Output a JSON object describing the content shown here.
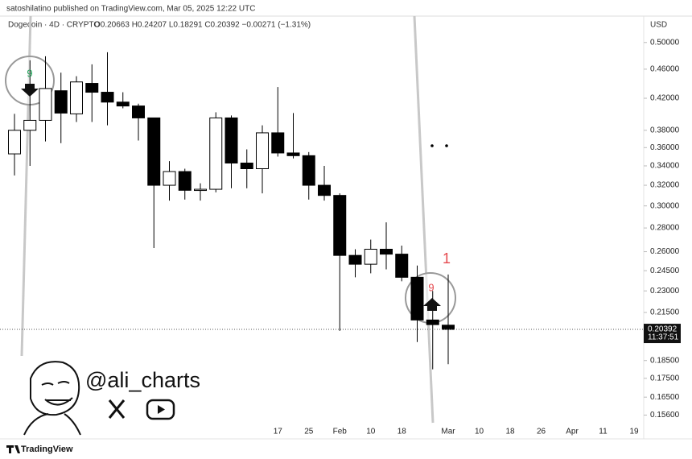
{
  "header": {
    "publisher": "satoshilatino published on TradingView.com, Mar 05, 2025 12:22 UTC"
  },
  "chart_data": {
    "type": "candlestick",
    "symbol": "Dogecoin · 4D · CRYPTO",
    "legend_text": "O0.20663 H0.24207 L0.18291 C0.20392 −0.00271 (−1.31%)",
    "currency": "USD",
    "countdown": "11:37:51",
    "categories": [
      null,
      null,
      null,
      null,
      null,
      null,
      null,
      null,
      null,
      null,
      null,
      null,
      null,
      null,
      null,
      null,
      null,
      "17",
      null,
      "25",
      null,
      "Feb",
      null,
      "10",
      null,
      "18",
      null,
      null,
      "Mar",
      null,
      "10",
      null,
      "18",
      null,
      "26",
      null,
      "Apr",
      null,
      "11",
      null,
      "19"
    ],
    "open": [
      0.353,
      0.38,
      0.392,
      0.43,
      0.4,
      0.44,
      0.428,
      0.415,
      0.41,
      0.395,
      0.32,
      0.334,
      0.315,
      0.316,
      0.395,
      0.343,
      0.337,
      0.377,
      0.354,
      0.351,
      0.32,
      0.31,
      0.257,
      0.25,
      0.262,
      0.258,
      0.24,
      0.21,
      0.20663,
      null,
      null,
      null,
      null,
      null,
      null,
      null,
      null,
      null,
      null,
      null,
      null
    ],
    "high": [
      0.4,
      0.473,
      0.479,
      0.455,
      0.45,
      0.467,
      0.485,
      0.428,
      0.413,
      0.395,
      0.345,
      0.337,
      0.322,
      0.402,
      0.398,
      0.358,
      0.386,
      0.435,
      0.401,
      0.355,
      0.34,
      0.312,
      0.262,
      0.27,
      0.285,
      0.265,
      0.249,
      0.23,
      0.24207,
      null,
      null,
      null,
      null,
      null,
      null,
      null,
      null,
      null,
      null,
      null,
      null
    ],
    "low": [
      0.33,
      0.34,
      0.367,
      0.365,
      0.39,
      0.39,
      0.386,
      0.407,
      0.368,
      0.263,
      0.305,
      0.306,
      0.305,
      0.313,
      0.317,
      0.317,
      0.312,
      0.35,
      0.348,
      0.306,
      0.305,
      0.203,
      0.24,
      0.243,
      0.246,
      0.237,
      0.196,
      0.18,
      0.18291,
      null,
      null,
      null,
      null,
      null,
      null,
      null,
      null,
      null,
      null,
      null,
      null
    ],
    "close": [
      0.38,
      0.392,
      0.433,
      0.401,
      0.442,
      0.428,
      0.415,
      0.41,
      0.395,
      0.32,
      0.334,
      0.315,
      0.316,
      0.395,
      0.343,
      0.337,
      0.377,
      0.354,
      0.351,
      0.32,
      0.31,
      0.257,
      0.25,
      0.262,
      0.258,
      0.24,
      0.21,
      0.207,
      0.20392,
      null,
      null,
      null,
      null,
      null,
      null,
      null,
      null,
      null,
      null,
      null,
      null
    ],
    "up_color": "#ffffff",
    "down_color": "#000000",
    "border_color": "#000000",
    "log_scale": true,
    "ylim": [
      0.1523,
      0.543
    ],
    "yticks": [
      {
        "value": 0.5,
        "label": "0.50000"
      },
      {
        "value": 0.46,
        "label": "0.46000"
      },
      {
        "value": 0.42,
        "label": "0.42000"
      },
      {
        "value": 0.38,
        "label": "0.38000"
      },
      {
        "value": 0.36,
        "label": "0.36000"
      },
      {
        "value": 0.34,
        "label": "0.34000"
      },
      {
        "value": 0.32,
        "label": "0.32000"
      },
      {
        "value": 0.3,
        "label": "0.30000"
      },
      {
        "value": 0.28,
        "label": "0.28000"
      },
      {
        "value": 0.26,
        "label": "0.26000"
      },
      {
        "value": 0.245,
        "label": "0.24500"
      },
      {
        "value": 0.23,
        "label": "0.23000"
      },
      {
        "value": 0.215,
        "label": "0.21500"
      },
      {
        "value": 0.185,
        "label": "0.18500"
      },
      {
        "value": 0.175,
        "label": "0.17500"
      },
      {
        "value": 0.165,
        "label": "0.16500"
      },
      {
        "value": 0.156,
        "label": "0.15600"
      }
    ],
    "annotations": [
      "9",
      "9",
      "1"
    ]
  },
  "watermark": {
    "handle": "@ali_charts"
  },
  "footer": {
    "brand": "TradingView"
  }
}
